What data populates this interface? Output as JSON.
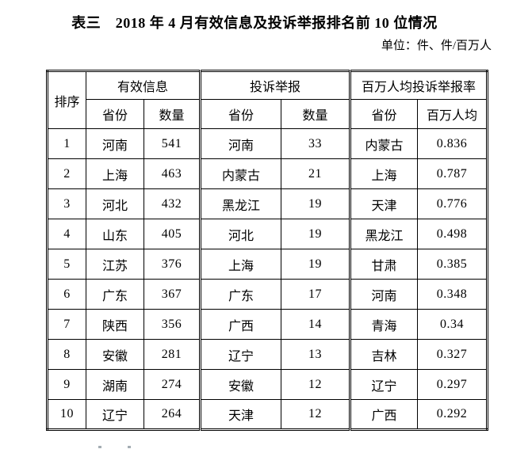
{
  "title": "表三　2018 年 4 月有效信息及投诉举报排名前 10 位情况",
  "unit": "单位：件、件/百万人",
  "table": {
    "header": {
      "rank": "排序",
      "groups": [
        {
          "label": "有效信息",
          "cols": [
            "省份",
            "数量"
          ]
        },
        {
          "label": "投诉举报",
          "cols": [
            "省份",
            "数量"
          ]
        },
        {
          "label": "百万人均投诉举报率",
          "cols": [
            "省份",
            "百万人均"
          ]
        }
      ]
    },
    "rows": [
      [
        "1",
        "河南",
        "541",
        "河南",
        "33",
        "内蒙古",
        "0.836"
      ],
      [
        "2",
        "上海",
        "463",
        "内蒙古",
        "21",
        "上海",
        "0.787"
      ],
      [
        "3",
        "河北",
        "432",
        "黑龙江",
        "19",
        "天津",
        "0.776"
      ],
      [
        "4",
        "山东",
        "405",
        "河北",
        "19",
        "黑龙江",
        "0.498"
      ],
      [
        "5",
        "江苏",
        "376",
        "上海",
        "19",
        "甘肃",
        "0.385"
      ],
      [
        "6",
        "广东",
        "367",
        "广东",
        "17",
        "河南",
        "0.348"
      ],
      [
        "7",
        "陕西",
        "356",
        "广西",
        "14",
        "青海",
        "0.34"
      ],
      [
        "8",
        "安徽",
        "281",
        "辽宁",
        "13",
        "吉林",
        "0.327"
      ],
      [
        "9",
        "湖南",
        "274",
        "安徽",
        "12",
        "辽宁",
        "0.297"
      ],
      [
        "10",
        "辽宁",
        "264",
        "天津",
        "12",
        "广西",
        "0.292"
      ]
    ]
  },
  "colors": {
    "text": "#000000",
    "background": "#ffffff",
    "border": "#000000"
  }
}
